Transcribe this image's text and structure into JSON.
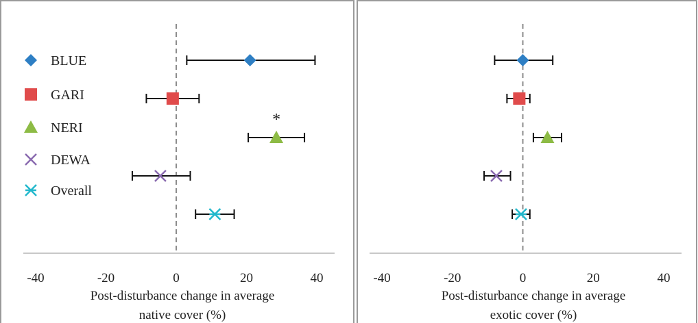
{
  "chart_data": [
    {
      "type": "scatter",
      "xlim": [
        -40,
        40
      ],
      "xticks": [
        -40,
        -20,
        0,
        20,
        40
      ],
      "xlabel_line1": "Post-disturbance change in average",
      "xlabel_line2": "native cover (%)",
      "legend": {
        "placement": "left",
        "entries": [
          {
            "name": "BLUE",
            "marker": "diamond",
            "color": "#2e7fc4"
          },
          {
            "name": "GARI",
            "marker": "square",
            "color": "#e04b4b"
          },
          {
            "name": "NERI",
            "marker": "triangle",
            "color": "#8dbb45"
          },
          {
            "name": "DEWA",
            "marker": "x",
            "color": "#8a6bb0"
          },
          {
            "name": "Overall",
            "marker": "star",
            "color": "#22b8cc"
          }
        ]
      },
      "series": [
        {
          "name": "BLUE",
          "x": 21,
          "low": 3,
          "high": 39.5
        },
        {
          "name": "GARI",
          "x": -1,
          "low": -8.5,
          "high": 6.5
        },
        {
          "name": "NERI",
          "x": 28.5,
          "low": 20.5,
          "high": 36.5,
          "annotation": "*"
        },
        {
          "name": "DEWA",
          "x": -4.5,
          "low": -12.5,
          "high": 4
        },
        {
          "name": "Overall",
          "x": 11,
          "low": 5.5,
          "high": 16.5
        }
      ]
    },
    {
      "type": "scatter",
      "xlim": [
        -40,
        40
      ],
      "xticks": [
        -40,
        -20,
        0,
        20,
        40
      ],
      "xlabel_line1": "Post-disturbance change in average",
      "xlabel_line2": "exotic cover  (%)",
      "series": [
        {
          "name": "BLUE",
          "x": 0,
          "low": -8,
          "high": 8.5
        },
        {
          "name": "GARI",
          "x": -1,
          "low": -4.5,
          "high": 2
        },
        {
          "name": "NERI",
          "x": 7,
          "low": 3,
          "high": 11
        },
        {
          "name": "DEWA",
          "x": -7.5,
          "low": -11,
          "high": -3.5
        },
        {
          "name": "Overall",
          "x": -0.5,
          "low": -3,
          "high": 2
        }
      ]
    }
  ]
}
